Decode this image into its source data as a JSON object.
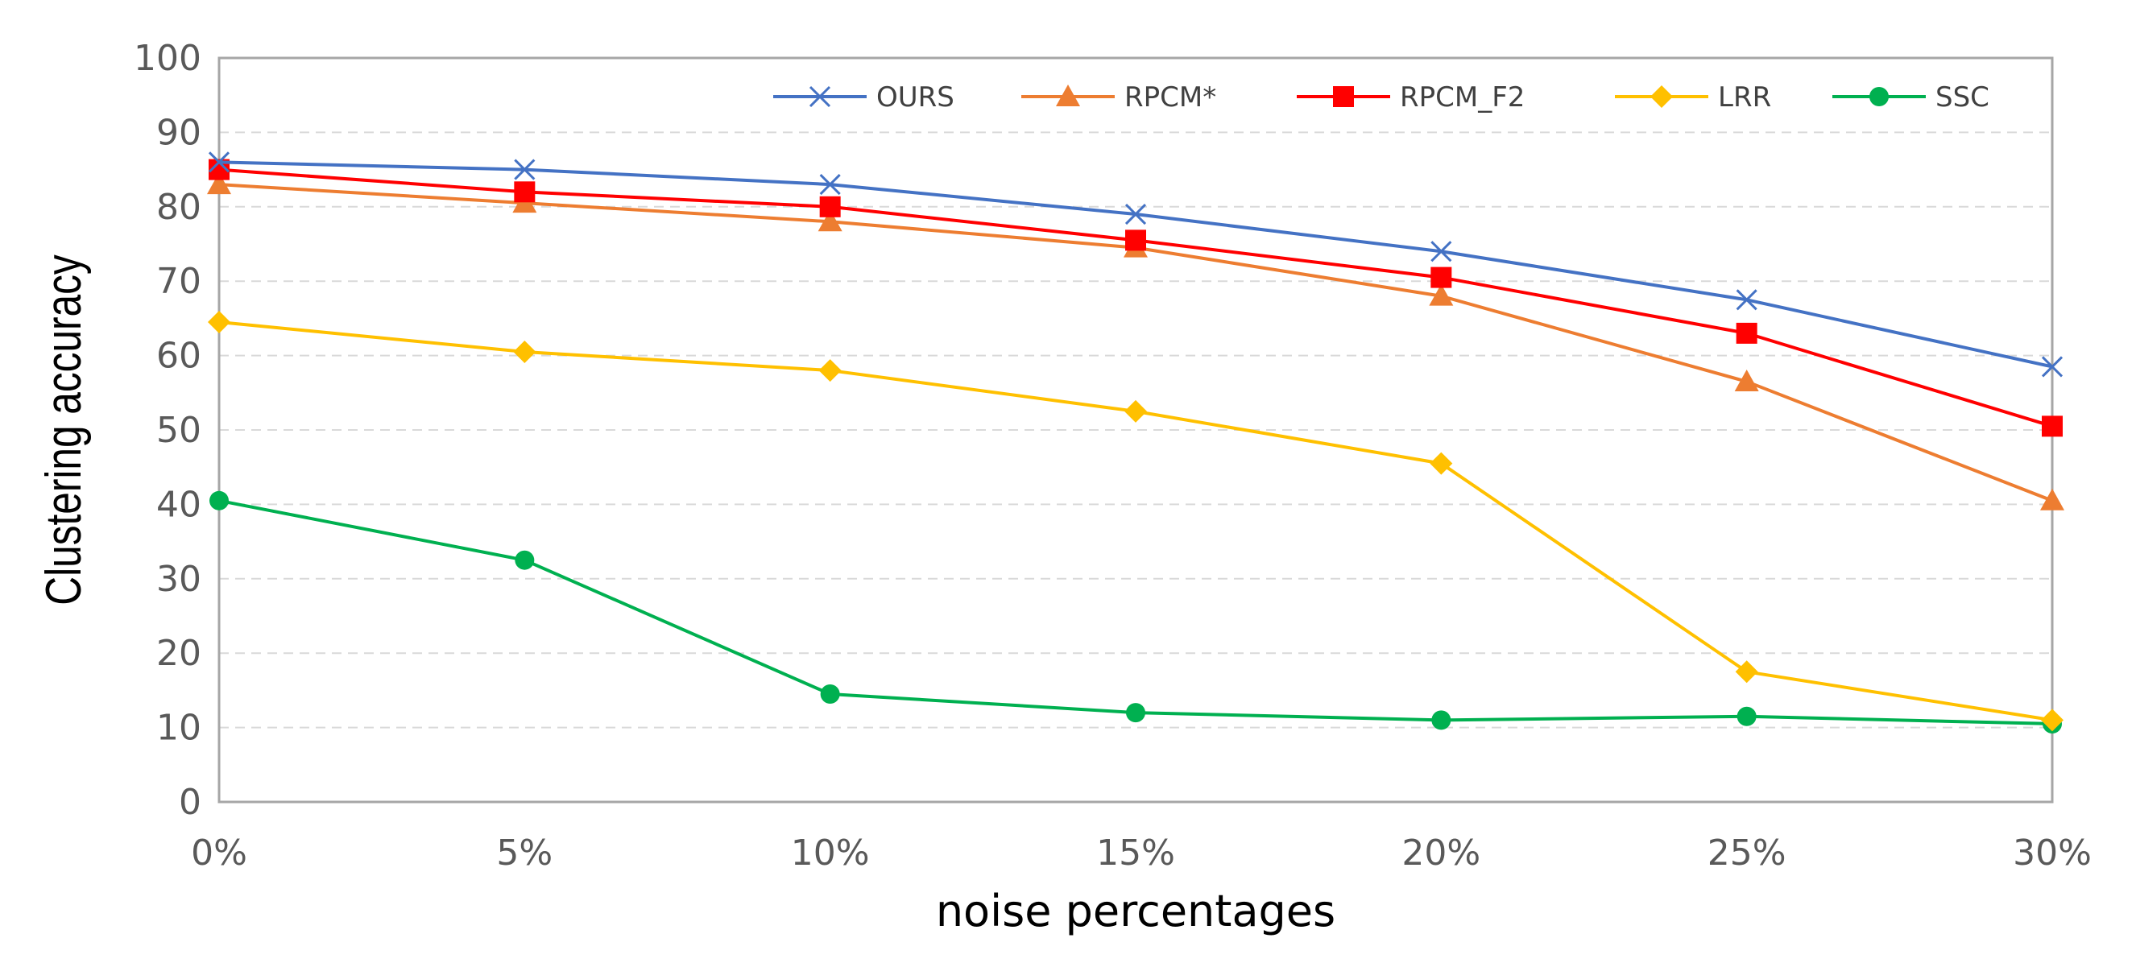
{
  "chart_data": {
    "type": "line",
    "title": "",
    "xlabel": "noise percentages",
    "ylabel": "Clustering accuracy",
    "categories": [
      "0%",
      "5%",
      "10%",
      "15%",
      "20%",
      "25%",
      "30%"
    ],
    "ylim": [
      0,
      100
    ],
    "yticks": [
      0,
      10,
      20,
      30,
      40,
      50,
      60,
      70,
      80,
      90,
      100
    ],
    "ytick_labels": [
      "0",
      "10",
      "20",
      "30",
      "40",
      "50",
      "60",
      "70",
      "80",
      "90",
      "100"
    ],
    "grid": true,
    "legend_position": "top-right",
    "series": [
      {
        "name": "OURS",
        "color": "#4472c4",
        "marker": "x",
        "values": [
          86,
          85,
          83,
          79,
          74,
          67.5,
          58.5
        ]
      },
      {
        "name": "RPCM*",
        "color": "#ed7d31",
        "marker": "triangle",
        "values": [
          83,
          80.5,
          78,
          74.5,
          68,
          56.5,
          40.5
        ]
      },
      {
        "name": "RPCM_F2",
        "color": "#ff0000",
        "marker": "square",
        "values": [
          85,
          82,
          80,
          75.5,
          70.5,
          63,
          50.5
        ]
      },
      {
        "name": "LRR",
        "color": "#ffc000",
        "marker": "diamond",
        "values": [
          64.5,
          60.5,
          58,
          52.5,
          45.5,
          17.5,
          11
        ]
      },
      {
        "name": "SSC",
        "color": "#00b050",
        "marker": "circle",
        "values": [
          40.5,
          32.5,
          14.5,
          12,
          11,
          11.5,
          10.5
        ]
      }
    ]
  }
}
